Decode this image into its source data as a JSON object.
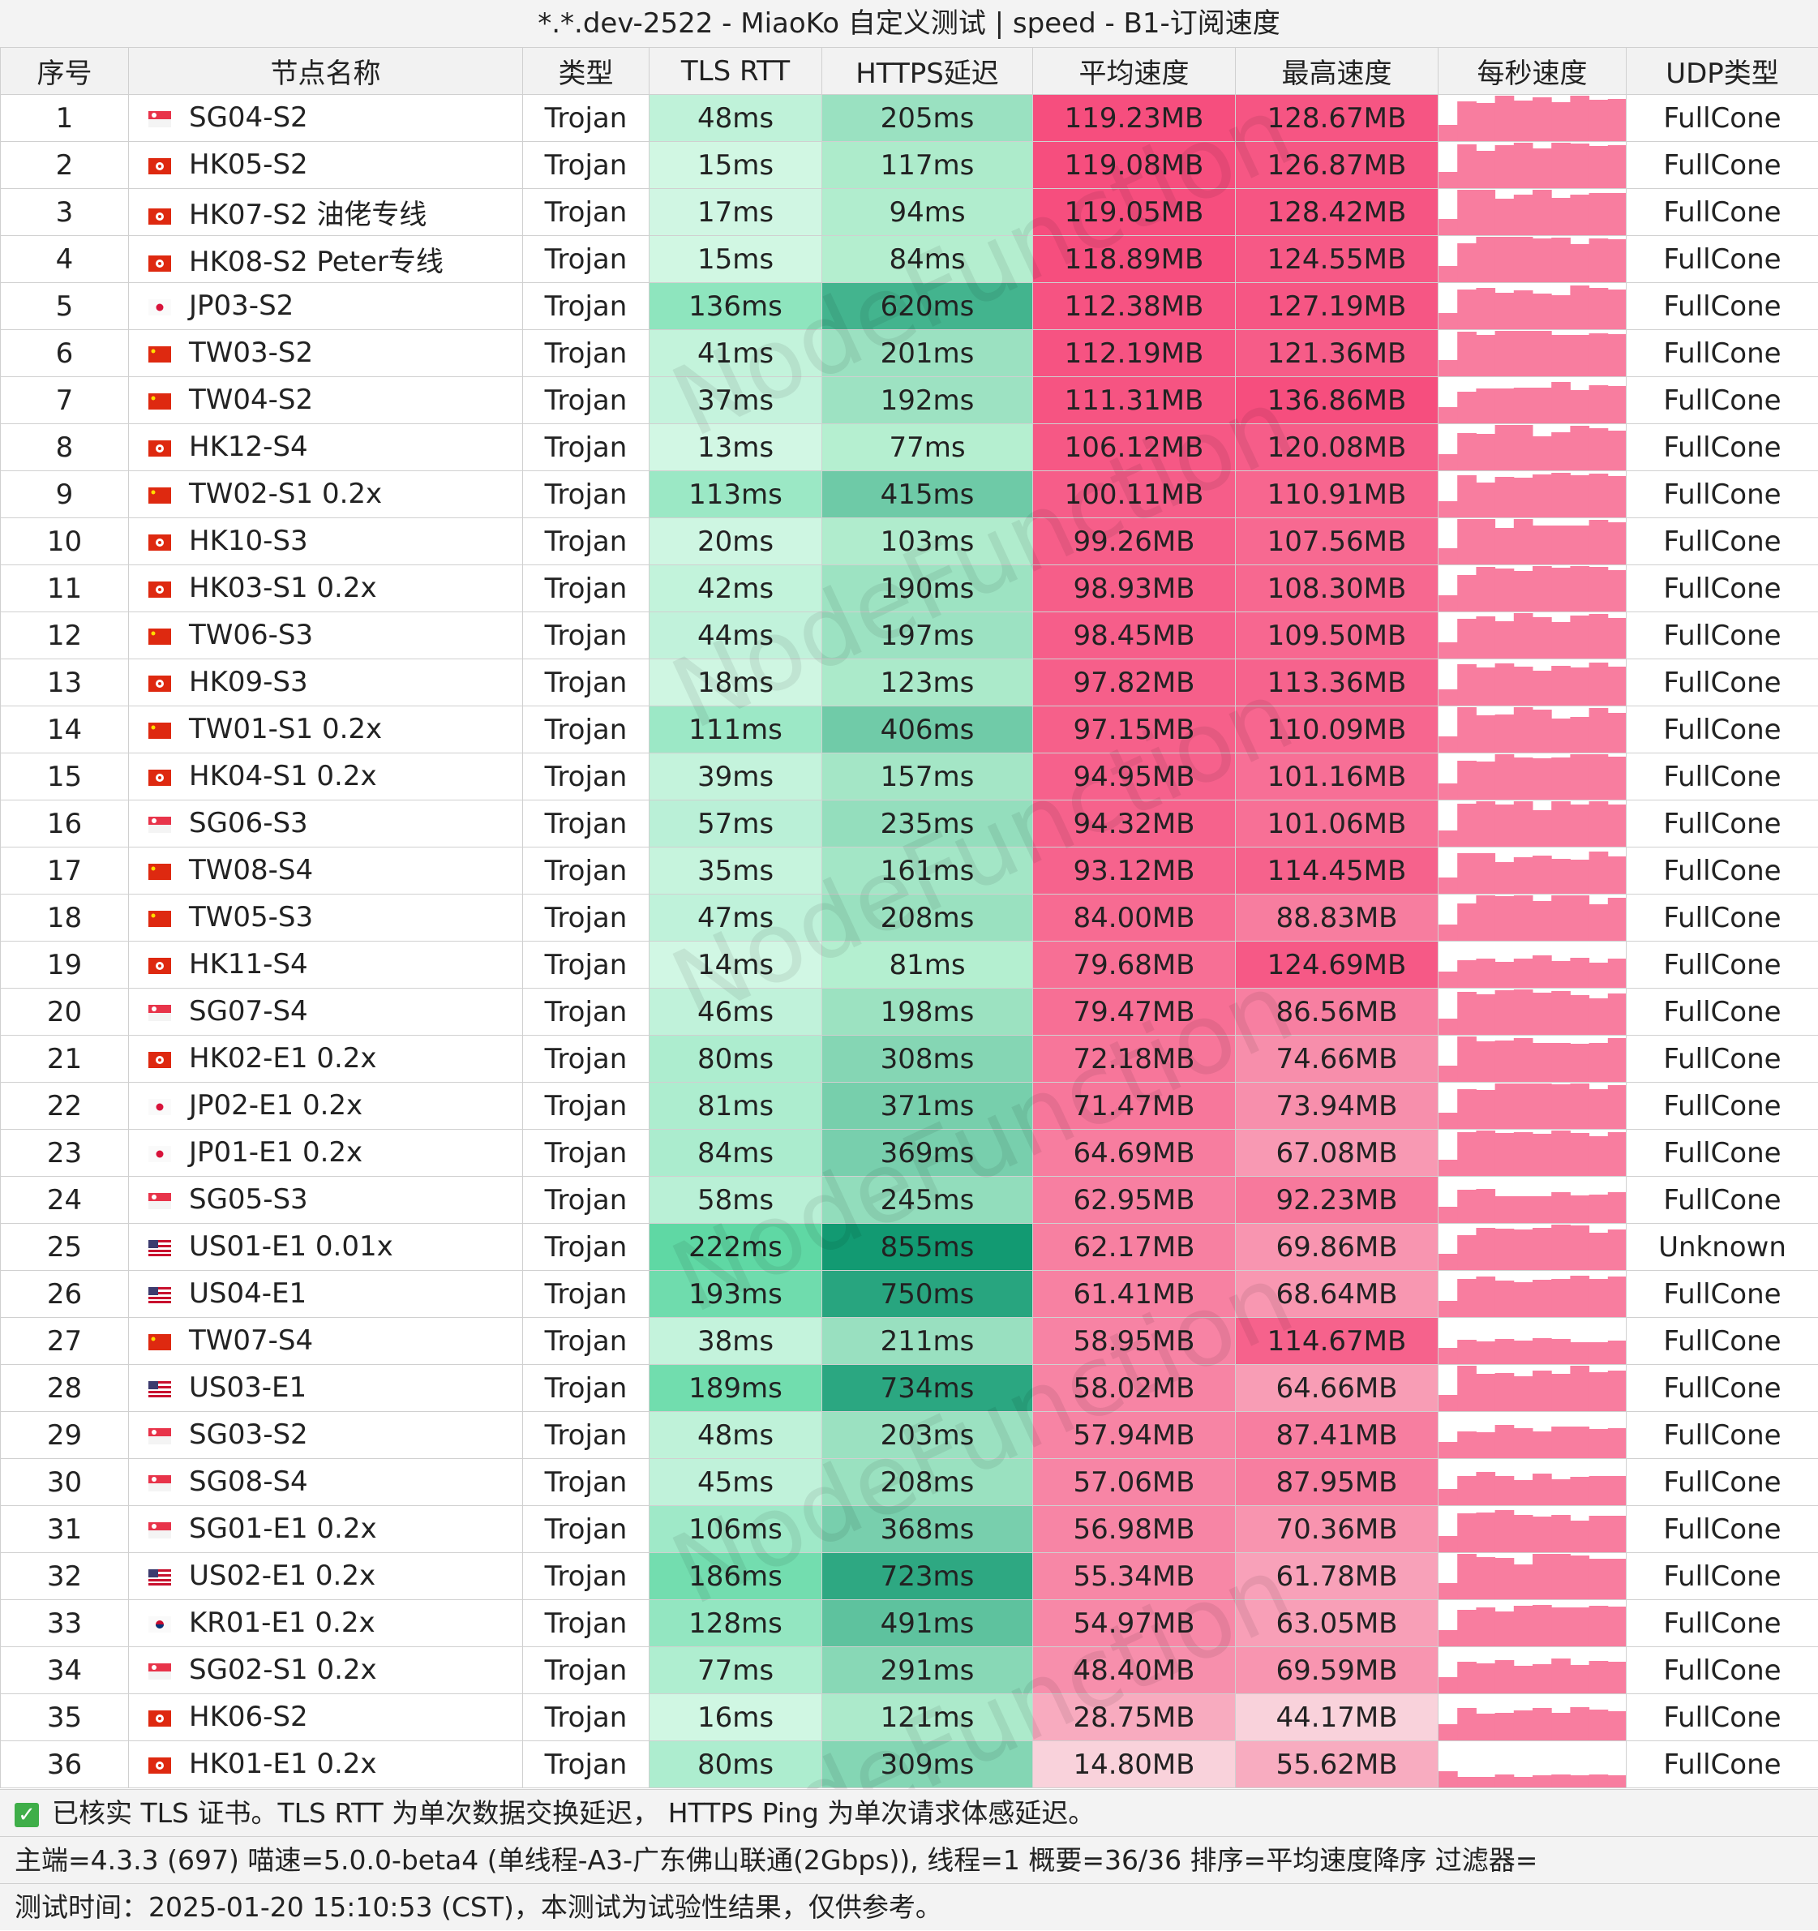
{
  "title": "*.*.dev-2522 - MiaoKo 自定义测试 | speed - B1-订阅速度",
  "headers": [
    "序号",
    "节点名称",
    "类型",
    "TLS RTT",
    "HTTPS延迟",
    "平均速度",
    "最高速度",
    "每秒速度",
    "UDP类型"
  ],
  "watermark": "NodeFunction",
  "rows": [
    {
      "idx": "1",
      "flag": "SG",
      "name": "SG04-S2",
      "type": "Trojan",
      "tls": "48ms",
      "https": "205ms",
      "avg": "119.23MB",
      "max": "128.67MB",
      "udp": "FullCone"
    },
    {
      "idx": "2",
      "flag": "HK",
      "name": "HK05-S2",
      "type": "Trojan",
      "tls": "15ms",
      "https": "117ms",
      "avg": "119.08MB",
      "max": "126.87MB",
      "udp": "FullCone"
    },
    {
      "idx": "3",
      "flag": "HK",
      "name": "HK07-S2 油佬专线",
      "type": "Trojan",
      "tls": "17ms",
      "https": "94ms",
      "avg": "119.05MB",
      "max": "128.42MB",
      "udp": "FullCone"
    },
    {
      "idx": "4",
      "flag": "HK",
      "name": "HK08-S2 Peter专线",
      "type": "Trojan",
      "tls": "15ms",
      "https": "84ms",
      "avg": "118.89MB",
      "max": "124.55MB",
      "udp": "FullCone"
    },
    {
      "idx": "5",
      "flag": "JP",
      "name": "JP03-S2",
      "type": "Trojan",
      "tls": "136ms",
      "https": "620ms",
      "avg": "112.38MB",
      "max": "127.19MB",
      "udp": "FullCone"
    },
    {
      "idx": "6",
      "flag": "CN",
      "name": "TW03-S2",
      "type": "Trojan",
      "tls": "41ms",
      "https": "201ms",
      "avg": "112.19MB",
      "max": "121.36MB",
      "udp": "FullCone"
    },
    {
      "idx": "7",
      "flag": "CN",
      "name": "TW04-S2",
      "type": "Trojan",
      "tls": "37ms",
      "https": "192ms",
      "avg": "111.31MB",
      "max": "136.86MB",
      "udp": "FullCone"
    },
    {
      "idx": "8",
      "flag": "HK",
      "name": "HK12-S4",
      "type": "Trojan",
      "tls": "13ms",
      "https": "77ms",
      "avg": "106.12MB",
      "max": "120.08MB",
      "udp": "FullCone"
    },
    {
      "idx": "9",
      "flag": "CN",
      "name": "TW02-S1 0.2x",
      "type": "Trojan",
      "tls": "113ms",
      "https": "415ms",
      "avg": "100.11MB",
      "max": "110.91MB",
      "udp": "FullCone"
    },
    {
      "idx": "10",
      "flag": "HK",
      "name": "HK10-S3",
      "type": "Trojan",
      "tls": "20ms",
      "https": "103ms",
      "avg": "99.26MB",
      "max": "107.56MB",
      "udp": "FullCone"
    },
    {
      "idx": "11",
      "flag": "HK",
      "name": "HK03-S1 0.2x",
      "type": "Trojan",
      "tls": "42ms",
      "https": "190ms",
      "avg": "98.93MB",
      "max": "108.30MB",
      "udp": "FullCone"
    },
    {
      "idx": "12",
      "flag": "CN",
      "name": "TW06-S3",
      "type": "Trojan",
      "tls": "44ms",
      "https": "197ms",
      "avg": "98.45MB",
      "max": "109.50MB",
      "udp": "FullCone"
    },
    {
      "idx": "13",
      "flag": "HK",
      "name": "HK09-S3",
      "type": "Trojan",
      "tls": "18ms",
      "https": "123ms",
      "avg": "97.82MB",
      "max": "113.36MB",
      "udp": "FullCone"
    },
    {
      "idx": "14",
      "flag": "CN",
      "name": "TW01-S1 0.2x",
      "type": "Trojan",
      "tls": "111ms",
      "https": "406ms",
      "avg": "97.15MB",
      "max": "110.09MB",
      "udp": "FullCone"
    },
    {
      "idx": "15",
      "flag": "HK",
      "name": "HK04-S1 0.2x",
      "type": "Trojan",
      "tls": "39ms",
      "https": "157ms",
      "avg": "94.95MB",
      "max": "101.16MB",
      "udp": "FullCone"
    },
    {
      "idx": "16",
      "flag": "SG",
      "name": "SG06-S3",
      "type": "Trojan",
      "tls": "57ms",
      "https": "235ms",
      "avg": "94.32MB",
      "max": "101.06MB",
      "udp": "FullCone"
    },
    {
      "idx": "17",
      "flag": "CN",
      "name": "TW08-S4",
      "type": "Trojan",
      "tls": "35ms",
      "https": "161ms",
      "avg": "93.12MB",
      "max": "114.45MB",
      "udp": "FullCone"
    },
    {
      "idx": "18",
      "flag": "CN",
      "name": "TW05-S3",
      "type": "Trojan",
      "tls": "47ms",
      "https": "208ms",
      "avg": "84.00MB",
      "max": "88.83MB",
      "udp": "FullCone"
    },
    {
      "idx": "19",
      "flag": "HK",
      "name": "HK11-S4",
      "type": "Trojan",
      "tls": "14ms",
      "https": "81ms",
      "avg": "79.68MB",
      "max": "124.69MB",
      "udp": "FullCone"
    },
    {
      "idx": "20",
      "flag": "SG",
      "name": "SG07-S4",
      "type": "Trojan",
      "tls": "46ms",
      "https": "198ms",
      "avg": "79.47MB",
      "max": "86.56MB",
      "udp": "FullCone"
    },
    {
      "idx": "21",
      "flag": "HK",
      "name": "HK02-E1 0.2x",
      "type": "Trojan",
      "tls": "80ms",
      "https": "308ms",
      "avg": "72.18MB",
      "max": "74.66MB",
      "udp": "FullCone"
    },
    {
      "idx": "22",
      "flag": "JP",
      "name": "JP02-E1 0.2x",
      "type": "Trojan",
      "tls": "81ms",
      "https": "371ms",
      "avg": "71.47MB",
      "max": "73.94MB",
      "udp": "FullCone"
    },
    {
      "idx": "23",
      "flag": "JP",
      "name": "JP01-E1 0.2x",
      "type": "Trojan",
      "tls": "84ms",
      "https": "369ms",
      "avg": "64.69MB",
      "max": "67.08MB",
      "udp": "FullCone"
    },
    {
      "idx": "24",
      "flag": "SG",
      "name": "SG05-S3",
      "type": "Trojan",
      "tls": "58ms",
      "https": "245ms",
      "avg": "62.95MB",
      "max": "92.23MB",
      "udp": "FullCone"
    },
    {
      "idx": "25",
      "flag": "US",
      "name": "US01-E1 0.01x",
      "type": "Trojan",
      "tls": "222ms",
      "https": "855ms",
      "avg": "62.17MB",
      "max": "69.86MB",
      "udp": "Unknown"
    },
    {
      "idx": "26",
      "flag": "US",
      "name": "US04-E1",
      "type": "Trojan",
      "tls": "193ms",
      "https": "750ms",
      "avg": "61.41MB",
      "max": "68.64MB",
      "udp": "FullCone"
    },
    {
      "idx": "27",
      "flag": "CN",
      "name": "TW07-S4",
      "type": "Trojan",
      "tls": "38ms",
      "https": "211ms",
      "avg": "58.95MB",
      "max": "114.67MB",
      "udp": "FullCone"
    },
    {
      "idx": "28",
      "flag": "US",
      "name": "US03-E1",
      "type": "Trojan",
      "tls": "189ms",
      "https": "734ms",
      "avg": "58.02MB",
      "max": "64.66MB",
      "udp": "FullCone"
    },
    {
      "idx": "29",
      "flag": "SG",
      "name": "SG03-S2",
      "type": "Trojan",
      "tls": "48ms",
      "https": "203ms",
      "avg": "57.94MB",
      "max": "87.41MB",
      "udp": "FullCone"
    },
    {
      "idx": "30",
      "flag": "SG",
      "name": "SG08-S4",
      "type": "Trojan",
      "tls": "45ms",
      "https": "208ms",
      "avg": "57.06MB",
      "max": "87.95MB",
      "udp": "FullCone"
    },
    {
      "idx": "31",
      "flag": "SG",
      "name": "SG01-E1 0.2x",
      "type": "Trojan",
      "tls": "106ms",
      "https": "368ms",
      "avg": "56.98MB",
      "max": "70.36MB",
      "udp": "FullCone"
    },
    {
      "idx": "32",
      "flag": "US",
      "name": "US02-E1 0.2x",
      "type": "Trojan",
      "tls": "186ms",
      "https": "723ms",
      "avg": "55.34MB",
      "max": "61.78MB",
      "udp": "FullCone"
    },
    {
      "idx": "33",
      "flag": "KR",
      "name": "KR01-E1 0.2x",
      "type": "Trojan",
      "tls": "128ms",
      "https": "491ms",
      "avg": "54.97MB",
      "max": "63.05MB",
      "udp": "FullCone"
    },
    {
      "idx": "34",
      "flag": "SG",
      "name": "SG02-S1 0.2x",
      "type": "Trojan",
      "tls": "77ms",
      "https": "291ms",
      "avg": "48.40MB",
      "max": "69.59MB",
      "udp": "FullCone"
    },
    {
      "idx": "35",
      "flag": "HK",
      "name": "HK06-S2",
      "type": "Trojan",
      "tls": "16ms",
      "https": "121ms",
      "avg": "28.75MB",
      "max": "44.17MB",
      "udp": "FullCone"
    },
    {
      "idx": "36",
      "flag": "HK",
      "name": "HK01-E1 0.2x",
      "type": "Trojan",
      "tls": "80ms",
      "https": "309ms",
      "avg": "14.80MB",
      "max": "55.62MB",
      "udp": "FullCone"
    }
  ],
  "footer": {
    "line1": "已核实 TLS 证书。TLS RTT 为单次数据交换延迟， HTTPS Ping 为单次请求体感延迟。",
    "line2": "主端=4.3.3 (697) 喵速=5.0.0-beta4 (单线程-A3-广东佛山联通(2Gbps)), 线程=1 概要=36/36 排序=平均速度降序 过滤器=",
    "line3": "测试时间：2025-01-20 15:10:53 (CST)，本测试为试验性结果，仅供参考。"
  },
  "colors": {
    "green_dark": "#129a72",
    "green_light": "#d2f7e4",
    "pink_dark": "#f64e7e",
    "pink_light": "#f9d2db",
    "spark": "#f87d9f"
  }
}
